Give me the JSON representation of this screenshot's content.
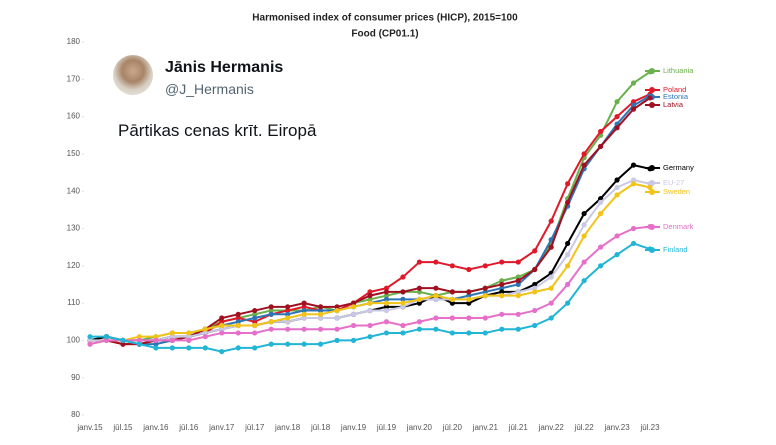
{
  "chart_data": {
    "type": "line",
    "title": "Harmonised index of consumer prices (HICP), 2015=100",
    "subtitle": "Food (CP01.1)",
    "categories": [
      "janv.15",
      null,
      "jūl.15",
      null,
      "janv.16",
      null,
      "jūl.16",
      null,
      "janv.17",
      null,
      "jūl.17",
      null,
      "janv.18",
      null,
      "jūl.18",
      null,
      "janv.19",
      null,
      "jūl.19",
      null,
      "janv.20",
      null,
      "jūl.20",
      null,
      "janv.21",
      null,
      "jūl.21",
      null,
      "janv.22",
      null,
      "jūl.22",
      null,
      "janv.23",
      null,
      "jūl.23"
    ],
    "ylim": [
      80,
      180
    ],
    "yticks": [
      80,
      90,
      100,
      110,
      120,
      130,
      140,
      150,
      160,
      170,
      180
    ],
    "series": [
      {
        "name": "Lithuania",
        "color": "#6ab04c",
        "values": [
          100,
          101,
          100,
          100,
          101,
          102,
          102,
          103,
          105,
          106,
          107,
          108,
          108,
          108,
          109,
          108,
          110,
          111,
          112,
          113,
          113,
          112,
          113,
          113,
          114,
          116,
          117,
          119,
          126,
          138,
          149,
          155,
          164,
          169,
          172
        ]
      },
      {
        "name": "Poland",
        "color": "#e0192a",
        "values": [
          100,
          100,
          99,
          99,
          100,
          101,
          101,
          102,
          105,
          106,
          105,
          107,
          108,
          109,
          108,
          108,
          110,
          113,
          114,
          117,
          121,
          121,
          120,
          119,
          120,
          121,
          121,
          124,
          132,
          142,
          150,
          156,
          160,
          164,
          166
        ]
      },
      {
        "name": "Estonia",
        "color": "#2e75b6",
        "values": [
          100,
          101,
          100,
          99,
          99,
          100,
          101,
          103,
          104,
          105,
          106,
          107,
          107,
          108,
          108,
          108,
          109,
          110,
          111,
          111,
          111,
          111,
          111,
          112,
          113,
          114,
          115,
          119,
          127,
          136,
          146,
          152,
          158,
          163,
          165.5
        ]
      },
      {
        "name": "Latvia",
        "color": "#a01020",
        "values": [
          100,
          100,
          99,
          99,
          100,
          100,
          101,
          103,
          106,
          107,
          108,
          109,
          109,
          110,
          109,
          109,
          110,
          112,
          113,
          113,
          114,
          114,
          113,
          113,
          114,
          115,
          116,
          119,
          125,
          137,
          147,
          152,
          157,
          162,
          165
        ]
      },
      {
        "name": "Germany",
        "color": "#000000",
        "values": [
          100,
          101,
          100,
          100,
          100,
          101,
          101,
          102,
          103,
          104,
          104,
          105,
          105,
          106,
          106,
          106,
          107,
          108,
          109,
          109,
          110,
          112,
          110,
          110,
          112,
          113,
          113,
          115,
          118,
          126,
          134,
          138,
          143,
          147,
          146
        ]
      },
      {
        "name": "EU-27",
        "color": "#c9c9e6",
        "values": [
          100,
          100,
          100,
          100,
          100,
          101,
          101,
          102,
          103,
          104,
          104,
          105,
          105,
          106,
          106,
          106,
          107,
          108,
          108,
          109,
          111,
          111,
          111,
          111,
          112,
          112,
          113,
          114,
          117,
          123,
          131,
          137,
          141,
          143,
          142
        ]
      },
      {
        "name": "Sweden",
        "color": "#f2c318",
        "values": [
          99,
          100,
          100,
          101,
          101,
          102,
          102,
          103,
          104,
          104,
          104,
          105,
          106,
          107,
          107,
          108,
          109,
          110,
          110,
          110,
          111,
          112,
          111,
          111,
          112,
          112,
          112,
          113,
          114,
          120,
          128,
          134,
          139,
          142,
          141
        ]
      },
      {
        "name": "Denmark",
        "color": "#e56fc9",
        "values": [
          99,
          100,
          100,
          100,
          100,
          100,
          100,
          101,
          102,
          102,
          102,
          103,
          103,
          103,
          103,
          103,
          104,
          104,
          105,
          104,
          105,
          106,
          106,
          106,
          106,
          107,
          107,
          108,
          110,
          115,
          121,
          125,
          128,
          130,
          130.5
        ]
      },
      {
        "name": "Finland",
        "color": "#22b5d6",
        "values": [
          101,
          101,
          100,
          99,
          98,
          98,
          98,
          98,
          97,
          98,
          98,
          99,
          99,
          99,
          99,
          100,
          100,
          101,
          102,
          102,
          103,
          103,
          102,
          102,
          102,
          103,
          103,
          104,
          106,
          110,
          116,
          120,
          123,
          126,
          124.5
        ]
      }
    ]
  },
  "tweet": {
    "name": "Jānis Hermanis",
    "handle": "@J_Hermanis",
    "text": "Pārtikas cenas krīt. Eiropā"
  }
}
